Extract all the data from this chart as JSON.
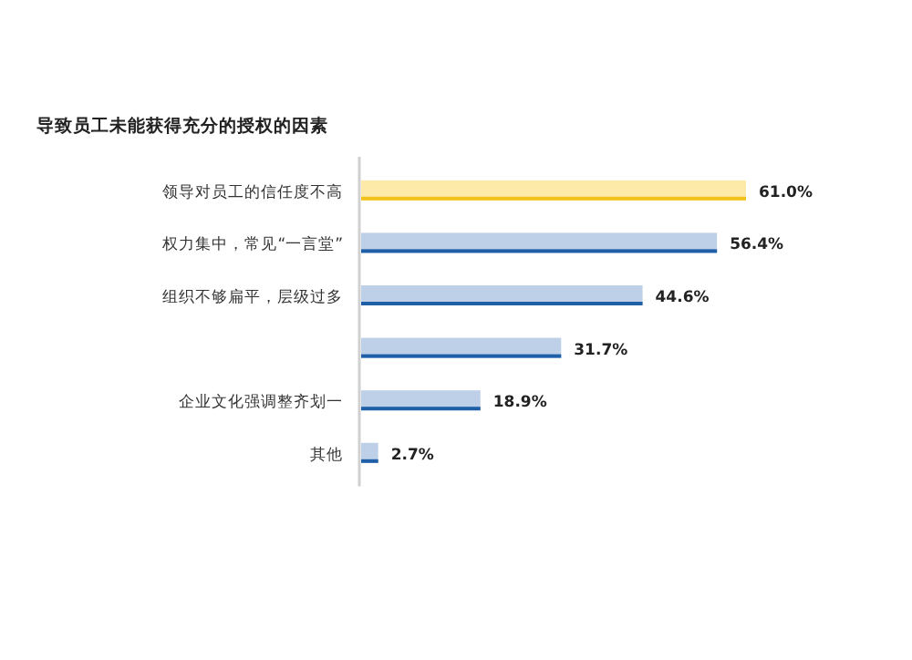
{
  "chart_data": {
    "type": "bar",
    "orientation": "horizontal",
    "title": "导致员工未能获得充分的授权的因素",
    "categories": [
      "领导对员工的信任度不高",
      "权力集中，常见“一言堂”",
      "组织不够扁平，层级过多",
      null,
      "企业文化强调整齐划一",
      "其他"
    ],
    "values": [
      61.0,
      56.4,
      44.6,
      31.7,
      18.9,
      2.7
    ],
    "value_labels": [
      "61.0%",
      "56.4%",
      "44.6%",
      "31.7%",
      "18.9%",
      "2.7%"
    ],
    "colors": [
      "#fde9a8",
      "#bdd0e8",
      "#bdd0e8",
      "#bdd0e8",
      "#bdd0e8",
      "#bdd0e8"
    ]
  }
}
